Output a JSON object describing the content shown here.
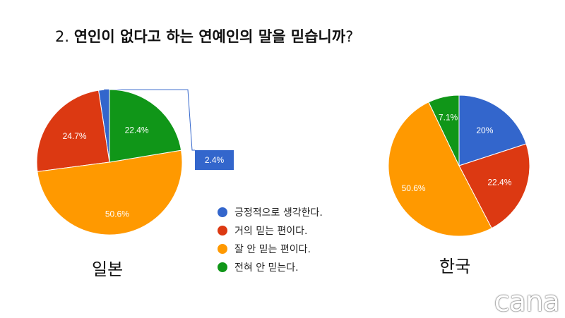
{
  "title": {
    "number": "2.",
    "question": "연인이 없다고 하는 연예인의 말을 믿습니까",
    "mark": "?"
  },
  "colors": {
    "blue": "#3366cc",
    "red": "#dc3912",
    "orange": "#ff9900",
    "green": "#109618",
    "callout_bg": "#3366cc"
  },
  "legend": [
    {
      "label": "긍정적으로 생각한다.",
      "color": "#3366cc"
    },
    {
      "label": "거의 믿는 편이다.",
      "color": "#dc3912"
    },
    {
      "label": "잘 안 믿는 편이다.",
      "color": "#ff9900"
    },
    {
      "label": "전혀 안 믿는다.",
      "color": "#109618"
    }
  ],
  "chart_data": [
    {
      "type": "pie",
      "title": "일본",
      "categories": [
        "긍정적으로 생각한다.",
        "거의 믿는 편이다.",
        "잘 안 믿는 편이다.",
        "전혀 안 믿는다."
      ],
      "values": [
        2.4,
        24.7,
        50.6,
        22.4
      ],
      "labels": [
        "2.4%",
        "24.7%",
        "50.6%",
        "22.4%"
      ],
      "callout": "2.4%"
    },
    {
      "type": "pie",
      "title": "한국",
      "categories": [
        "긍정적으로 생각한다.",
        "거의 믿는 편이다.",
        "잘 안 믿는 편이다.",
        "전혀 안 믿는다."
      ],
      "values": [
        20,
        22.4,
        50.6,
        7.1
      ],
      "labels": [
        "20%",
        "22.4%",
        "50.6%",
        "7.1%"
      ]
    }
  ],
  "watermark": "cana"
}
